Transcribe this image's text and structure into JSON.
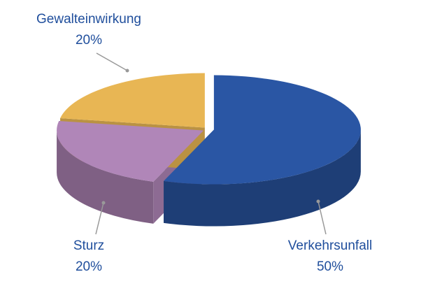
{
  "chart_data": {
    "type": "pie",
    "categories": [
      "Verkehrsunfall",
      "Sturz",
      "Gewalteinwirkung"
    ],
    "values": [
      50,
      20,
      20
    ],
    "value_labels": [
      "50%",
      "20%",
      "20%"
    ],
    "colors": [
      "#2a56a4",
      "#b086b8",
      "#e8b654"
    ]
  }
}
